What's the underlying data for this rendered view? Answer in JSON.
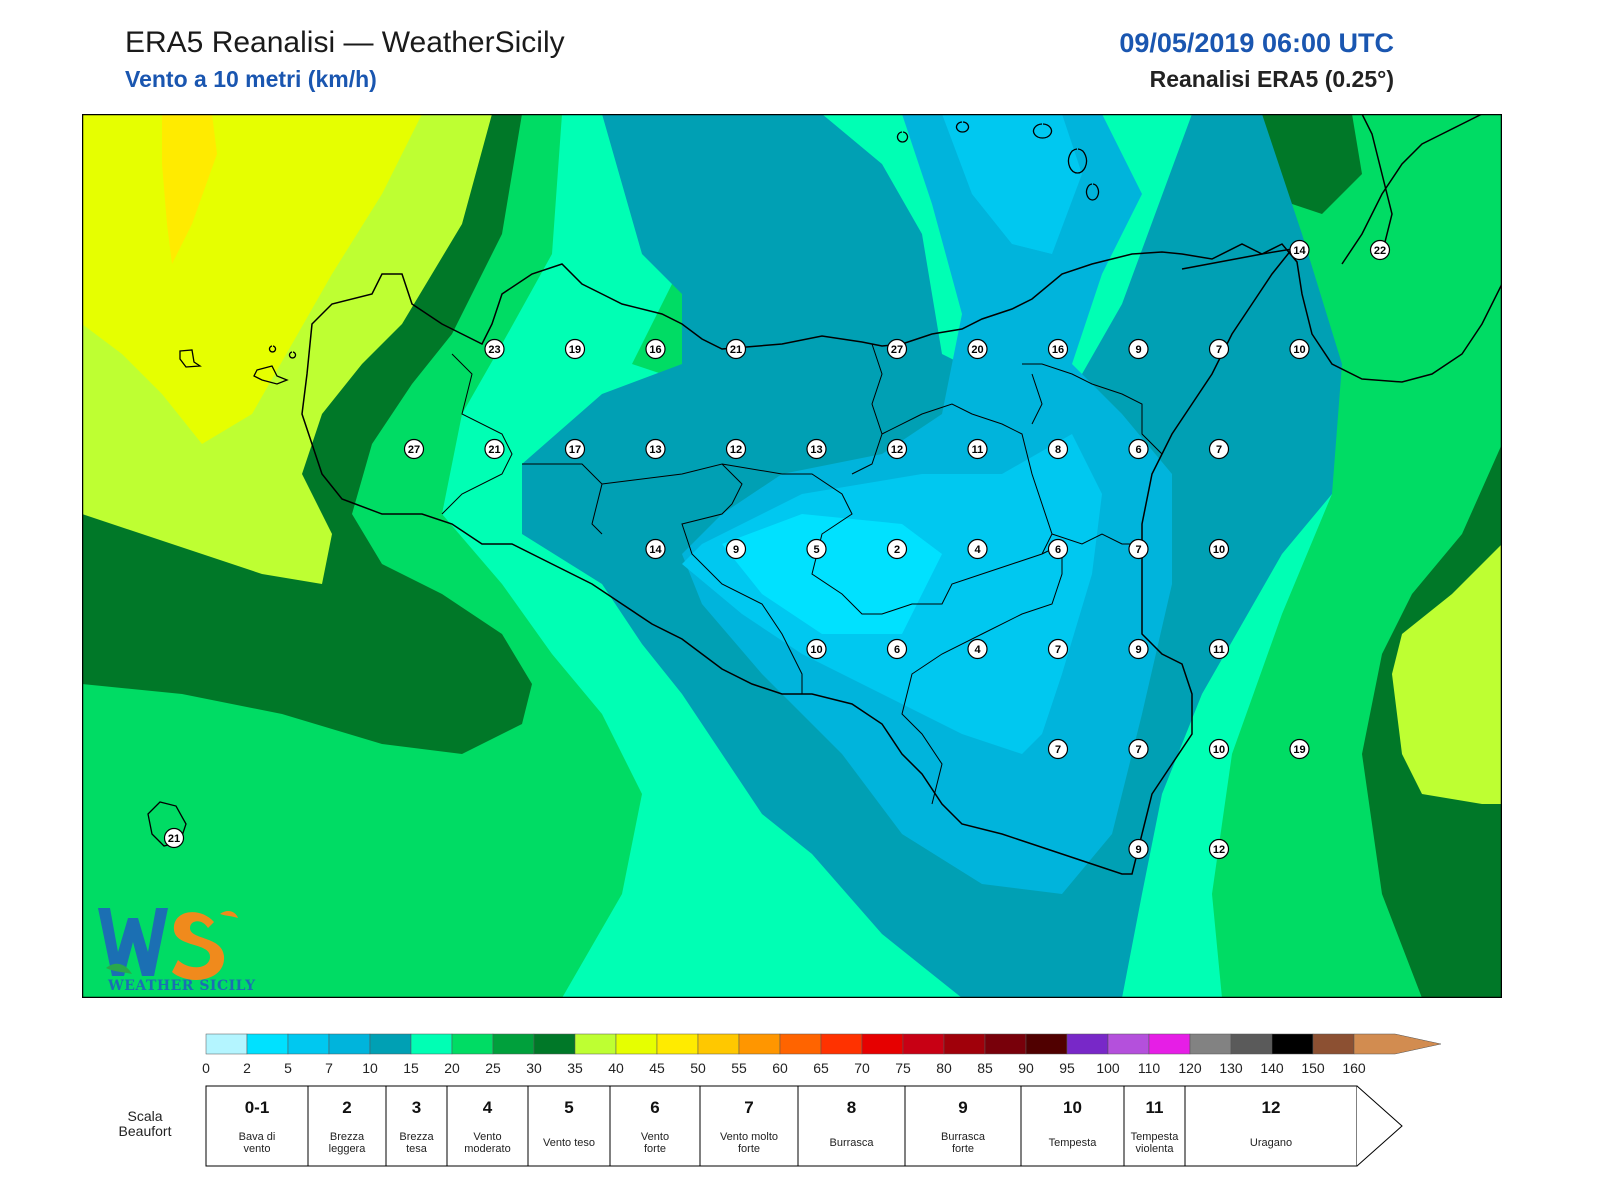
{
  "header": {
    "title": "ERA5 Reanalisi — WeatherSicily",
    "subtitle": "Vento a 10 metri (km/h)",
    "datetime": "09/05/2019 06:00 UTC",
    "model": "Reanalisi ERA5 (0.25°)"
  },
  "logo": {
    "text": "WEATHER SICILY",
    "icon": "weather-sicily-logo-icon"
  },
  "map": {
    "stations": [
      {
        "v": 23,
        "c": 5,
        "r": 1
      },
      {
        "v": 19,
        "c": 6,
        "r": 1
      },
      {
        "v": 16,
        "c": 7,
        "r": 1
      },
      {
        "v": 21,
        "c": 8,
        "r": 1
      },
      {
        "v": 27,
        "c": 10,
        "r": 1
      },
      {
        "v": 20,
        "c": 11,
        "r": 1
      },
      {
        "v": 16,
        "c": 12,
        "r": 1
      },
      {
        "v": 9,
        "c": 13,
        "r": 1
      },
      {
        "v": 7,
        "c": 14,
        "r": 1
      },
      {
        "v": 10,
        "c": 15,
        "r": 1
      },
      {
        "v": 27,
        "c": 4,
        "r": 2
      },
      {
        "v": 21,
        "c": 5,
        "r": 2
      },
      {
        "v": 17,
        "c": 6,
        "r": 2
      },
      {
        "v": 13,
        "c": 7,
        "r": 2
      },
      {
        "v": 12,
        "c": 8,
        "r": 2
      },
      {
        "v": 13,
        "c": 9,
        "r": 2
      },
      {
        "v": 12,
        "c": 10,
        "r": 2
      },
      {
        "v": 11,
        "c": 11,
        "r": 2
      },
      {
        "v": 8,
        "c": 12,
        "r": 2
      },
      {
        "v": 6,
        "c": 13,
        "r": 2
      },
      {
        "v": 7,
        "c": 14,
        "r": 2
      },
      {
        "v": 14,
        "c": 7,
        "r": 3
      },
      {
        "v": 9,
        "c": 8,
        "r": 3
      },
      {
        "v": 5,
        "c": 9,
        "r": 3
      },
      {
        "v": 2,
        "c": 10,
        "r": 3
      },
      {
        "v": 4,
        "c": 11,
        "r": 3
      },
      {
        "v": 6,
        "c": 12,
        "r": 3
      },
      {
        "v": 7,
        "c": 13,
        "r": 3
      },
      {
        "v": 10,
        "c": 14,
        "r": 3
      },
      {
        "v": 10,
        "c": 9,
        "r": 4
      },
      {
        "v": 6,
        "c": 10,
        "r": 4
      },
      {
        "v": 4,
        "c": 11,
        "r": 4
      },
      {
        "v": 7,
        "c": 12,
        "r": 4
      },
      {
        "v": 9,
        "c": 13,
        "r": 4
      },
      {
        "v": 11,
        "c": 14,
        "r": 4
      },
      {
        "v": 7,
        "c": 12,
        "r": 5
      },
      {
        "v": 7,
        "c": 13,
        "r": 5
      },
      {
        "v": 10,
        "c": 14,
        "r": 5
      },
      {
        "v": 19,
        "c": 15,
        "r": 5
      },
      {
        "v": 9,
        "c": 13,
        "r": 6
      },
      {
        "v": 12,
        "c": 14,
        "r": 6
      },
      {
        "v": 14,
        "c": 15,
        "r": -1
      },
      {
        "v": 22,
        "c": 16,
        "r": -1
      },
      {
        "v": 21,
        "c": 1,
        "r": 6
      }
    ]
  },
  "colorbar": {
    "ticks": [
      "0",
      "2",
      "5",
      "7",
      "10",
      "15",
      "20",
      "25",
      "30",
      "35",
      "40",
      "45",
      "50",
      "55",
      "60",
      "65",
      "70",
      "75",
      "80",
      "85",
      "90",
      "95",
      "100",
      "110",
      "120",
      "130",
      "140",
      "150",
      "160"
    ],
    "colors": [
      "#b4f5ff",
      "#00e1ff",
      "#00c8f0",
      "#00b4dc",
      "#00a0b4",
      "#00ffb4",
      "#00dc64",
      "#00a03c",
      "#007828",
      "#beff32",
      "#e6ff00",
      "#ffeb00",
      "#ffc800",
      "#ff9600",
      "#ff6400",
      "#ff3200",
      "#e60000",
      "#c80014",
      "#a0000a",
      "#78000a",
      "#500000",
      "#7828c8",
      "#b450dc",
      "#e61ee6",
      "#828282",
      "#5a5a5a",
      "#000000",
      "#8c5032",
      "#d28c50"
    ]
  },
  "beaufort": {
    "label_line1": "Scala",
    "label_line2": "Beaufort",
    "cells": [
      {
        "num": "0-1",
        "l1": "Bava di",
        "l2": "vento"
      },
      {
        "num": "2",
        "l1": "Brezza",
        "l2": "leggera"
      },
      {
        "num": "3",
        "l1": "Brezza",
        "l2": "tesa"
      },
      {
        "num": "4",
        "l1": "Vento",
        "l2": "moderato"
      },
      {
        "num": "5",
        "l1": "Vento teso",
        "l2": ""
      },
      {
        "num": "6",
        "l1": "Vento",
        "l2": "forte"
      },
      {
        "num": "7",
        "l1": "Vento molto",
        "l2": "forte"
      },
      {
        "num": "8",
        "l1": "Burrasca",
        "l2": ""
      },
      {
        "num": "9",
        "l1": "Burrasca",
        "l2": "forte"
      },
      {
        "num": "10",
        "l1": "Tempesta",
        "l2": ""
      },
      {
        "num": "11",
        "l1": "Tempesta",
        "l2": "violenta"
      },
      {
        "num": "12",
        "l1": "Uragano",
        "l2": ""
      }
    ]
  }
}
